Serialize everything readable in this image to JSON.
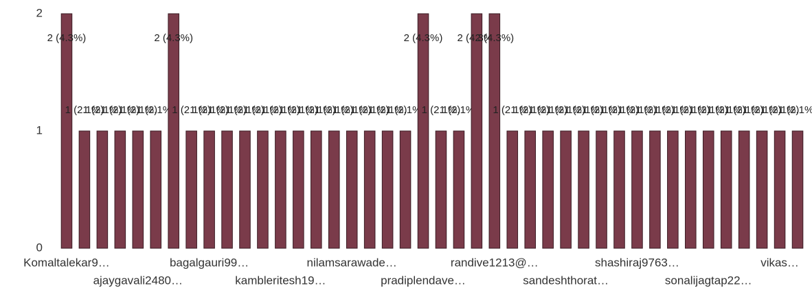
{
  "chart_data": {
    "type": "bar",
    "categories": [
      "Komaltalekar9…",
      null,
      null,
      null,
      "ajaygavali2480…",
      null,
      null,
      null,
      "bagalgauri99…",
      null,
      null,
      null,
      "kambleritesh19…",
      null,
      null,
      null,
      "nilamsarawade…",
      null,
      null,
      null,
      "pradiplendave…",
      null,
      null,
      null,
      "randive1213@…",
      null,
      null,
      null,
      "sandeshthorat…",
      null,
      null,
      null,
      "shashiraj9763…",
      null,
      null,
      null,
      "sonalijagtap22…",
      null,
      null,
      null,
      "vikas…",
      null
    ],
    "values": [
      2,
      1,
      1,
      1,
      1,
      1,
      2,
      1,
      1,
      1,
      1,
      1,
      1,
      1,
      1,
      1,
      1,
      1,
      1,
      1,
      2,
      1,
      1,
      2,
      2,
      1,
      1,
      1,
      1,
      1,
      1,
      1,
      1,
      1,
      1,
      1,
      1,
      1,
      1,
      1,
      1,
      1
    ],
    "value_labels": [
      "2 (4.3%)",
      "1 (2.1%)",
      "1 (2.1%)",
      "1 (2.1%)",
      "1 (2.1%)",
      "1 (2.1%)",
      "2 (4.3%)",
      "1 (2.1%)",
      "1 (2.1%)",
      "1 (2.1%)",
      "1 (2.1%)",
      "1 (2.1%)",
      "1 (2.1%)",
      "1 (2.1%)",
      "1 (2.1%)",
      "1 (2.1%)",
      "1 (2.1%)",
      "1 (2.1%)",
      "1 (2.1%)",
      "1 (2.1%)",
      "2 (4.3%)",
      "1 (2.1%)",
      "1 (2.1%)",
      "2 (4.3%)",
      "2 (4.3%)",
      "1 (2.1%)",
      "1 (2.1%)",
      "1 (2.1%)",
      "1 (2.1%)",
      "1 (2.1%)",
      "1 (2.1%)",
      "1 (2.1%)",
      "1 (2.1%)",
      "1 (2.1%)",
      "1 (2.1%)",
      "1 (2.1%)",
      "1 (2.1%)",
      "1 (2.1%)",
      "1 (2.1%)",
      "1 (2.1%)",
      "1 (2.1%)",
      "1 (2.1%)"
    ],
    "color": "#7a3b4a",
    "ylim": [
      0,
      2
    ],
    "yticks": [
      0,
      1,
      2
    ],
    "grid": false
  }
}
